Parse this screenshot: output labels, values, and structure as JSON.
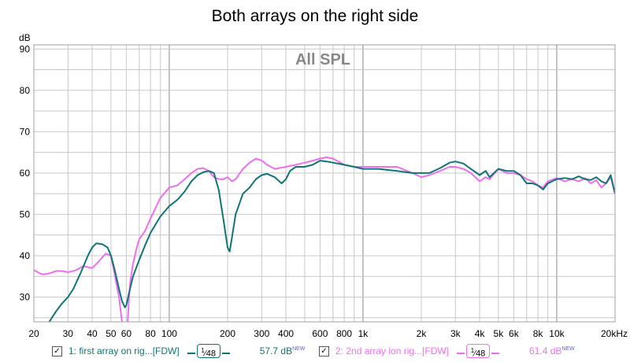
{
  "title": "Both arrays on the right side",
  "colors": {
    "series1": "#0e7575",
    "series2": "#ee6eee",
    "grid": "#c8c8c8",
    "frame": "#a0a0a0"
  },
  "chart_data": {
    "type": "line",
    "title": "Both arrays on the right side",
    "annotation": "All SPL",
    "ylabel": "dB",
    "xlabel": "",
    "xscale": "log",
    "xlim": [
      20,
      20000
    ],
    "ylim": [
      24,
      91
    ],
    "grid": true,
    "legend_position": "bottom",
    "x_tick_labels": [
      {
        "value": 20,
        "label": "20"
      },
      {
        "value": 30,
        "label": "30"
      },
      {
        "value": 40,
        "label": "40"
      },
      {
        "value": 50,
        "label": "50"
      },
      {
        "value": 60,
        "label": "60"
      },
      {
        "value": 80,
        "label": "80"
      },
      {
        "value": 100,
        "label": "100"
      },
      {
        "value": 200,
        "label": "200"
      },
      {
        "value": 300,
        "label": "300"
      },
      {
        "value": 400,
        "label": "400"
      },
      {
        "value": 600,
        "label": "600"
      },
      {
        "value": 800,
        "label": "800"
      },
      {
        "value": 1000,
        "label": "1k"
      },
      {
        "value": 2000,
        "label": "2k"
      },
      {
        "value": 3000,
        "label": "3k"
      },
      {
        "value": 4000,
        "label": "4k"
      },
      {
        "value": 5000,
        "label": "5k"
      },
      {
        "value": 6000,
        "label": "6k"
      },
      {
        "value": 8000,
        "label": "8k"
      },
      {
        "value": 10000,
        "label": "10k"
      },
      {
        "value": 20000,
        "label": "20kHz"
      }
    ],
    "y_ticks": [
      30,
      40,
      50,
      60,
      70,
      80,
      90
    ],
    "series": [
      {
        "name": "1: first array on rig...[FDW]",
        "smoothing": "1/48",
        "level": "57.7 dB",
        "x": [
          24,
          26,
          28,
          30,
          32,
          35,
          38,
          40,
          42,
          45,
          48,
          50,
          52,
          55,
          57,
          59,
          60,
          62,
          65,
          70,
          75,
          80,
          90,
          100,
          110,
          120,
          130,
          140,
          150,
          160,
          170,
          180,
          190,
          200,
          205,
          210,
          220,
          240,
          260,
          280,
          300,
          320,
          350,
          380,
          400,
          420,
          450,
          500,
          550,
          600,
          650,
          700,
          800,
          900,
          1000,
          1200,
          1500,
          1800,
          2000,
          2200,
          2500,
          2800,
          3000,
          3300,
          3600,
          4000,
          4300,
          4500,
          5000,
          5500,
          6000,
          6500,
          7000,
          7500,
          8000,
          8500,
          9000,
          10000,
          11000,
          12000,
          13000,
          14000,
          15000,
          16000,
          17000,
          18000,
          19000,
          20000
        ],
        "y": [
          24,
          26.5,
          28.5,
          30,
          32,
          36,
          40,
          42,
          43,
          42.8,
          42,
          40,
          37,
          32,
          29,
          27.5,
          28,
          31,
          35,
          39,
          42.5,
          45.5,
          49.5,
          52,
          53.5,
          55.5,
          58,
          59.5,
          60.2,
          60.5,
          60,
          56,
          49,
          42,
          41,
          44,
          50,
          55,
          56.5,
          58.5,
          59.5,
          59.8,
          59,
          57.5,
          58.5,
          60.5,
          61.5,
          61.5,
          62,
          63,
          62.8,
          62.5,
          62,
          61.5,
          61,
          61,
          60.5,
          60,
          60,
          60,
          61.2,
          62.5,
          62.8,
          62.3,
          61,
          59.5,
          60.5,
          59,
          61,
          60.5,
          60.5,
          59.5,
          57.5,
          57.5,
          57,
          56,
          57.5,
          58.5,
          58.8,
          58.5,
          59.2,
          58.5,
          58.3,
          59,
          58,
          57.5,
          59.5,
          55
        ]
      },
      {
        "name": "2: 2nd array lon rig...[FDW]",
        "smoothing": "1/48",
        "level": "61.4 dB",
        "x": [
          20,
          22,
          24,
          26,
          28,
          30,
          33,
          36,
          40,
          43,
          47,
          50,
          52,
          55,
          57,
          58,
          59,
          60,
          61,
          62,
          63,
          65,
          68,
          70,
          75,
          80,
          90,
          100,
          110,
          120,
          130,
          140,
          150,
          160,
          170,
          180,
          190,
          200,
          210,
          220,
          240,
          260,
          280,
          300,
          320,
          350,
          400,
          450,
          500,
          550,
          600,
          650,
          700,
          800,
          900,
          1000,
          1200,
          1500,
          1800,
          2000,
          2200,
          2500,
          2800,
          3000,
          3300,
          3600,
          4000,
          4300,
          4500,
          5000,
          5500,
          6000,
          6500,
          7000,
          7500,
          8000,
          8500,
          9000,
          10000,
          11000,
          12000,
          13000,
          14000,
          15000,
          16000,
          17000,
          18000,
          19000,
          20000
        ],
        "y": [
          36.5,
          35.5,
          35.7,
          36.3,
          36.3,
          36,
          36.5,
          37.5,
          37,
          38.5,
          40.5,
          40,
          36,
          30,
          24,
          20,
          16,
          18,
          24,
          30,
          34,
          38,
          42,
          44,
          46,
          49,
          54,
          56.5,
          57,
          58.5,
          60,
          61,
          61.2,
          60.5,
          59,
          58.5,
          58.5,
          59,
          58,
          58.5,
          61,
          62.5,
          63.5,
          63,
          62,
          61,
          61.5,
          62,
          62.5,
          63,
          63.5,
          63.8,
          63.5,
          62,
          61.5,
          61.5,
          61.5,
          61.5,
          60,
          59,
          59.5,
          60.5,
          61.5,
          61.5,
          61,
          60,
          58,
          59,
          58.5,
          61,
          60,
          60,
          59.5,
          58.5,
          58,
          57,
          56.5,
          58,
          58.8,
          58,
          58.5,
          58,
          58.8,
          57.5,
          58.3,
          56.5,
          57.5,
          59,
          55
        ]
      }
    ]
  },
  "legend": {
    "items": [
      {
        "check": "✓",
        "name": "1: first array on rig...[FDW]",
        "smoothing_num": "1",
        "smoothing_den": "48",
        "level": "57.7 dB",
        "new_tag": "NEW"
      },
      {
        "check": "✓",
        "name": "2: 2nd array lon rig...[FDW]",
        "smoothing_num": "1",
        "smoothing_den": "48",
        "level": "61.4 dB",
        "new_tag": "NEW"
      }
    ]
  }
}
